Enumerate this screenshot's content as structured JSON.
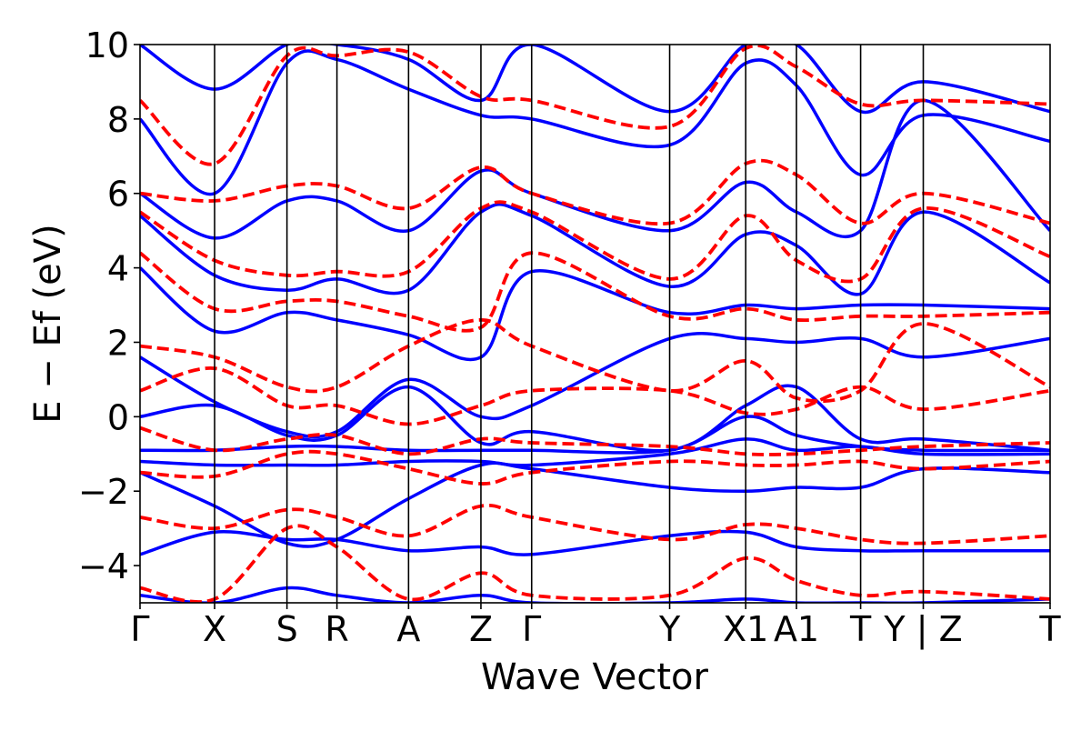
{
  "chart_data": {
    "type": "line",
    "title": "",
    "xlabel": "Wave Vector",
    "ylabel": "E − Ef (eV)",
    "ylim": [
      -5,
      10
    ],
    "xlim": [
      0,
      12.2
    ],
    "yticks": [
      -4,
      -2,
      0,
      2,
      4,
      6,
      8,
      10
    ],
    "ytick_labels": [
      "−4",
      "−2",
      "0",
      "2",
      "4",
      "6",
      "8",
      "10"
    ],
    "grid": false,
    "legend": "none",
    "high_symmetry_points": [
      {
        "label": "Γ",
        "x": 0.0
      },
      {
        "label": "X",
        "x": 1.0
      },
      {
        "label": "S",
        "x": 1.97
      },
      {
        "label": "R",
        "x": 2.64
      },
      {
        "label": "A",
        "x": 3.6
      },
      {
        "label": "Z",
        "x": 4.57
      },
      {
        "label": "Γ",
        "x": 5.25
      },
      {
        "label": "Y",
        "x": 7.1
      },
      {
        "label": "X1",
        "x": 8.12
      },
      {
        "label": "A1",
        "x": 8.8
      },
      {
        "label": "T",
        "x": 9.66
      },
      {
        "label": "Y | Z",
        "x": 10.5
      },
      {
        "label": "T",
        "x": 12.2
      }
    ],
    "series": [
      {
        "style": "solid",
        "color": "#0000ff",
        "bands": [
          {
            "x": [
              0,
              1,
              1.97,
              2.64,
              3.6,
              4.57,
              5.25,
              7.1,
              8.12,
              8.8,
              9.66,
              10.5,
              12.2
            ],
            "y": [
              -4.8,
              -5,
              -4.6,
              -4.8,
              -5,
              -4.8,
              -5,
              -5,
              -4.9,
              -5,
              -5,
              -5,
              -4.9
            ]
          },
          {
            "x": [
              0,
              1,
              1.97,
              2.64,
              3.6,
              4.57,
              5.25,
              7.1,
              8.12,
              8.8,
              9.66,
              10.5,
              12.2
            ],
            "y": [
              -3.7,
              -3.1,
              -3.3,
              -3.3,
              -3.6,
              -3.5,
              -3.7,
              -3.2,
              -3.1,
              -3.5,
              -3.6,
              -3.6,
              -3.6
            ]
          },
          {
            "x": [
              0,
              1,
              1.97,
              2.64,
              3.6,
              4.57,
              5.25,
              7.1,
              8.12,
              8.8,
              9.66,
              10.5,
              12.2
            ],
            "y": [
              -1.5,
              -2.4,
              -3.4,
              -3.3,
              -2.2,
              -1.3,
              -1.4,
              -1.9,
              -2.0,
              -1.9,
              -1.9,
              -1.4,
              -1.5
            ]
          },
          {
            "x": [
              0,
              1,
              1.97,
              2.64,
              3.6,
              4.57,
              5.25,
              7.1,
              8.12,
              8.8,
              9.66,
              10.5,
              12.2
            ],
            "y": [
              -1.2,
              -1.3,
              -1.3,
              -1.3,
              -1.2,
              -1.2,
              -1.3,
              -1.0,
              -0.6,
              -0.9,
              -0.8,
              -1.0,
              -1.0
            ]
          },
          {
            "x": [
              0,
              1,
              1.97,
              2.64,
              3.6,
              4.57,
              5.25,
              7.1,
              8.12,
              8.8,
              9.66,
              10.5,
              12.2
            ],
            "y": [
              -0.9,
              -0.9,
              -0.8,
              -0.8,
              -0.9,
              -0.9,
              -0.9,
              -0.9,
              0.0,
              -0.5,
              -0.8,
              -0.9,
              -0.9
            ]
          },
          {
            "x": [
              0,
              1,
              1.97,
              2.64,
              3.6,
              4.57,
              5.25,
              7.1,
              8.12,
              8.8,
              9.66,
              10.5,
              12.2
            ],
            "y": [
              0,
              0.3,
              -0.5,
              -0.5,
              0.8,
              -0.7,
              -0.4,
              -0.9,
              0.3,
              0.8,
              -0.6,
              -0.6,
              -0.9
            ]
          },
          {
            "x": [
              0,
              1,
              1.97,
              2.64,
              3.6,
              4.57,
              5.25,
              7.1,
              8.12,
              8.8,
              9.66,
              10.5,
              12.2
            ],
            "y": [
              1.6,
              0.4,
              -0.4,
              -0.4,
              1.0,
              0.0,
              0.3,
              2.1,
              2.1,
              2.0,
              2.1,
              1.6,
              2.1
            ]
          },
          {
            "x": [
              0,
              1,
              1.97,
              2.64,
              3.6,
              4.57,
              5.25,
              7.1,
              8.12,
              8.8,
              9.66,
              10.5,
              12.2
            ],
            "y": [
              4.0,
              2.3,
              2.8,
              2.6,
              2.2,
              1.6,
              3.9,
              2.8,
              3.0,
              2.9,
              3.0,
              3.0,
              2.9
            ]
          },
          {
            "x": [
              0,
              1,
              1.97,
              2.64,
              3.6,
              4.57,
              5.25,
              7.1,
              8.12,
              8.8,
              9.66,
              10.5,
              12.2
            ],
            "y": [
              5.4,
              3.8,
              3.4,
              3.7,
              3.4,
              5.5,
              5.4,
              3.5,
              4.9,
              4.6,
              3.3,
              5.5,
              3.6
            ]
          },
          {
            "x": [
              0,
              1,
              1.97,
              2.64,
              3.6,
              4.57,
              5.25,
              7.1,
              8.12,
              8.8,
              9.66,
              10.5,
              12.2
            ],
            "y": [
              6.0,
              4.8,
              5.8,
              5.8,
              5.0,
              6.6,
              6.0,
              5.0,
              6.3,
              5.5,
              5.0,
              8.5,
              5.0
            ]
          },
          {
            "x": [
              0,
              1,
              1.97,
              2.64,
              3.6,
              4.57,
              5.25,
              7.1,
              8.12,
              8.8,
              9.66,
              10.5,
              12.2
            ],
            "y": [
              8.0,
              6.0,
              9.5,
              9.6,
              8.8,
              8.1,
              8.0,
              7.3,
              9.5,
              8.9,
              6.5,
              8.1,
              7.4
            ]
          },
          {
            "x": [
              0,
              1,
              1.97,
              2.64,
              3.6,
              4.57,
              5.25,
              7.1,
              8.12,
              8.8,
              9.66,
              10.5,
              12.2
            ],
            "y": [
              10,
              8.8,
              10,
              10,
              9.6,
              8.5,
              10,
              8.2,
              10,
              10,
              8.2,
              9.0,
              8.2
            ]
          }
        ]
      },
      {
        "style": "dashed",
        "color": "#ff0000",
        "bands": [
          {
            "x": [
              0,
              1,
              1.97,
              2.64,
              3.6,
              4.57,
              5.25,
              7.1,
              8.12,
              8.8,
              9.66,
              10.5,
              12.2
            ],
            "y": [
              -4.6,
              -4.9,
              -3.0,
              -3.5,
              -4.9,
              -4.2,
              -4.8,
              -4.8,
              -3.8,
              -4.4,
              -4.8,
              -4.7,
              -4.9
            ]
          },
          {
            "x": [
              0,
              1,
              1.97,
              2.64,
              3.6,
              4.57,
              5.25,
              7.1,
              8.12,
              8.8,
              9.66,
              10.5,
              12.2
            ],
            "y": [
              -2.7,
              -3.0,
              -2.5,
              -2.7,
              -3.2,
              -2.4,
              -2.7,
              -3.3,
              -2.9,
              -3.0,
              -3.3,
              -3.4,
              -3.2
            ]
          },
          {
            "x": [
              0,
              1,
              1.97,
              2.64,
              3.6,
              4.57,
              5.25,
              7.1,
              8.12,
              8.8,
              9.66,
              10.5,
              12.2
            ],
            "y": [
              -1.5,
              -1.6,
              -1.0,
              -1.0,
              -1.4,
              -1.8,
              -1.5,
              -1.2,
              -1.3,
              -1.3,
              -1.2,
              -1.4,
              -1.2
            ]
          },
          {
            "x": [
              0,
              1,
              1.97,
              2.64,
              3.6,
              4.57,
              5.25,
              7.1,
              8.12,
              8.8,
              9.66,
              10.5,
              12.2
            ],
            "y": [
              -0.3,
              -0.9,
              -0.6,
              -0.5,
              -1.0,
              -0.6,
              -0.7,
              -0.8,
              -1.0,
              -1.0,
              -0.9,
              -0.8,
              -0.7
            ]
          },
          {
            "x": [
              0,
              1,
              1.97,
              2.64,
              3.6,
              4.57,
              5.25,
              7.1,
              8.12,
              8.8,
              9.66,
              10.5,
              12.2
            ],
            "y": [
              0.7,
              1.3,
              0.3,
              0.3,
              -0.2,
              0.3,
              0.7,
              0.7,
              0.1,
              0.2,
              0.8,
              0.2,
              0.7
            ]
          },
          {
            "x": [
              0,
              1,
              1.97,
              2.64,
              3.6,
              4.57,
              5.25,
              7.1,
              8.12,
              8.8,
              9.66,
              10.5,
              12.2
            ],
            "y": [
              1.9,
              1.6,
              0.8,
              0.8,
              1.9,
              2.6,
              1.9,
              0.7,
              1.5,
              0.5,
              0.7,
              2.5,
              0.8
            ]
          },
          {
            "x": [
              0,
              1,
              1.97,
              2.64,
              3.6,
              4.57,
              5.25,
              7.1,
              8.12,
              8.8,
              9.66,
              10.5,
              12.2
            ],
            "y": [
              4.4,
              2.9,
              3.1,
              3.1,
              2.7,
              2.4,
              4.4,
              2.7,
              2.9,
              2.6,
              2.7,
              2.7,
              2.8
            ]
          },
          {
            "x": [
              0,
              1,
              1.97,
              2.64,
              3.6,
              4.57,
              5.25,
              7.1,
              8.12,
              8.8,
              9.66,
              10.5,
              12.2
            ],
            "y": [
              5.5,
              4.2,
              3.8,
              3.9,
              3.9,
              5.6,
              5.5,
              3.7,
              5.4,
              4.2,
              3.7,
              5.6,
              4.3
            ]
          },
          {
            "x": [
              0,
              1,
              1.97,
              2.64,
              3.6,
              4.57,
              5.25,
              7.1,
              8.12,
              8.8,
              9.66,
              10.5,
              12.2
            ],
            "y": [
              6.0,
              5.8,
              6.2,
              6.2,
              5.6,
              6.7,
              6.0,
              5.2,
              6.8,
              6.5,
              5.2,
              6.0,
              5.2
            ]
          },
          {
            "x": [
              0,
              1,
              1.97,
              2.64,
              3.6,
              4.57,
              5.25,
              7.1,
              8.12,
              8.8,
              9.66,
              10.5,
              12.2
            ],
            "y": [
              8.5,
              6.8,
              9.7,
              9.7,
              9.8,
              8.6,
              8.5,
              7.8,
              9.9,
              9.4,
              8.4,
              8.5,
              8.4
            ]
          }
        ]
      }
    ]
  }
}
